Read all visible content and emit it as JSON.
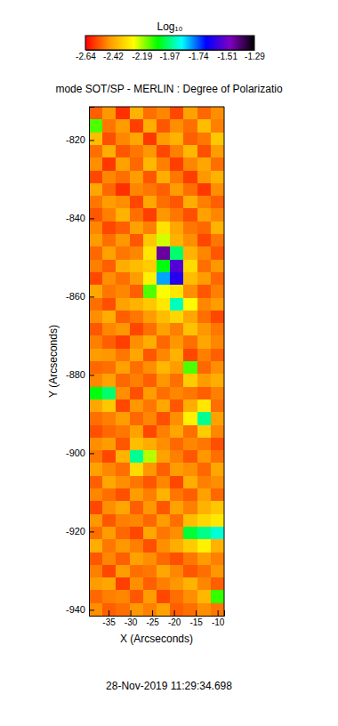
{
  "chart_data": {
    "type": "heatmap",
    "title": "mode SOT/SP - MERLIN : Degree of Polarizatio",
    "x_label": "X (Arcseconds)",
    "y_label": "Y (Arcseconds)",
    "annotation": "28-Nov-2019 11:29:34.698",
    "xlim": [
      -39.5,
      -8.5
    ],
    "xticks": [
      -35,
      -30,
      -25,
      -20,
      -15,
      -10
    ],
    "ylim": [
      -941.5,
      -811.5
    ],
    "yticks": [
      -940,
      -920,
      -900,
      -880,
      -860,
      -840,
      -820
    ],
    "colorbar": {
      "title": "Log₁₀",
      "range": [
        -2.64,
        -1.29
      ],
      "ticks": [
        -2.64,
        -2.42,
        -2.19,
        -1.97,
        -1.74,
        -1.51,
        -1.29
      ]
    },
    "x": [
      -37.95,
      -34.85,
      -31.75,
      -28.65,
      -25.55,
      -22.45,
      -19.35,
      -16.25,
      -13.15,
      -10.05
    ],
    "y": [
      -813.125,
      -816.375,
      -819.625,
      -822.875,
      -826.125,
      -829.375,
      -832.625,
      -835.875,
      -839.125,
      -842.375,
      -845.625,
      -848.875,
      -852.125,
      -855.375,
      -858.625,
      -861.875,
      -865.125,
      -868.375,
      -871.625,
      -874.875,
      -878.125,
      -881.375,
      -884.625,
      -887.875,
      -891.125,
      -894.375,
      -897.625,
      -900.875,
      -904.125,
      -907.375,
      -910.625,
      -913.875,
      -917.125,
      -920.375,
      -923.625,
      -926.875,
      -930.125,
      -933.375,
      -936.625,
      -939.875
    ],
    "z": [
      [
        -2.52,
        -2.45,
        -2.58,
        -2.4,
        -2.5,
        -2.47,
        -2.55,
        -2.43,
        -2.51,
        -2.46
      ],
      [
        -2.12,
        -2.49,
        -2.44,
        -2.56,
        -2.41,
        -2.53,
        -2.46,
        -2.5,
        -2.38,
        -2.48
      ],
      [
        -2.38,
        -2.54,
        -2.47,
        -2.42,
        -2.57,
        -2.44,
        -2.4,
        -2.52,
        -2.49,
        -2.36
      ],
      [
        -2.5,
        -2.41,
        -2.53,
        -2.49,
        -2.45,
        -2.55,
        -2.48,
        -2.39,
        -2.54,
        -2.44
      ],
      [
        -2.46,
        -2.57,
        -2.43,
        -2.51,
        -2.39,
        -2.48,
        -2.56,
        -2.47,
        -2.42,
        -2.5
      ],
      [
        -2.55,
        -2.47,
        -2.5,
        -2.44,
        -2.53,
        -2.41,
        -2.49,
        -2.56,
        -2.45,
        -2.4
      ],
      [
        -2.42,
        -2.51,
        -2.58,
        -2.47,
        -2.49,
        -2.52,
        -2.44,
        -2.5,
        -2.57,
        -2.46
      ],
      [
        -2.49,
        -2.44,
        -2.46,
        -2.55,
        -2.42,
        -2.5,
        -2.53,
        -2.41,
        -2.48,
        -2.52
      ],
      [
        -2.53,
        -2.48,
        -2.4,
        -2.5,
        -2.56,
        -2.45,
        -2.49,
        -2.54,
        -2.43,
        -2.47
      ],
      [
        -2.47,
        -2.55,
        -2.52,
        -2.43,
        -2.48,
        -2.31,
        -2.42,
        -2.49,
        -2.51,
        -2.4
      ],
      [
        -2.44,
        -2.5,
        -2.45,
        -2.53,
        -2.36,
        -2.22,
        -2.4,
        -2.46,
        -2.55,
        -2.49
      ],
      [
        -2.51,
        -2.43,
        -2.49,
        -2.47,
        -2.3,
        -1.45,
        -1.98,
        -2.4,
        -2.47,
        -2.53
      ],
      [
        -2.48,
        -2.52,
        -2.41,
        -2.38,
        -2.35,
        -2.05,
        -1.55,
        -2.32,
        -2.5,
        -2.45
      ],
      [
        -2.55,
        -2.46,
        -2.5,
        -2.44,
        -2.28,
        -1.8,
        -1.62,
        -2.38,
        -2.44,
        -2.51
      ],
      [
        -2.42,
        -2.49,
        -2.47,
        -2.52,
        -2.12,
        -2.25,
        -2.3,
        -2.46,
        -2.53,
        -2.48
      ],
      [
        -2.5,
        -2.54,
        -2.43,
        -2.4,
        -2.36,
        -2.3,
        -1.92,
        -2.26,
        -2.47,
        -2.44
      ],
      [
        -2.46,
        -2.41,
        -2.52,
        -2.49,
        -2.44,
        -2.38,
        -2.33,
        -2.42,
        -2.5,
        -2.55
      ],
      [
        -2.53,
        -2.47,
        -2.45,
        -2.55,
        -2.5,
        -2.43,
        -2.48,
        -2.37,
        -2.45,
        -2.49
      ],
      [
        -2.48,
        -2.52,
        -2.56,
        -2.46,
        -2.41,
        -2.51,
        -2.45,
        -2.5,
        -2.42,
        -2.47
      ],
      [
        -2.44,
        -2.45,
        -2.49,
        -2.42,
        -2.53,
        -2.47,
        -2.4,
        -2.55,
        -2.48,
        -2.52
      ],
      [
        -2.51,
        -2.5,
        -2.43,
        -2.5,
        -2.46,
        -2.39,
        -2.44,
        -2.12,
        -2.51,
        -2.46
      ],
      [
        -2.47,
        -2.43,
        -2.51,
        -2.48,
        -2.52,
        -2.45,
        -2.5,
        -2.35,
        -2.44,
        -2.41
      ],
      [
        -2.05,
        -1.98,
        -2.46,
        -2.54,
        -2.44,
        -2.5,
        -2.47,
        -2.49,
        -2.52,
        -2.48
      ],
      [
        -2.42,
        -2.36,
        -2.55,
        -2.45,
        -2.49,
        -2.42,
        -2.53,
        -2.41,
        -2.3,
        -2.5
      ],
      [
        -2.5,
        -2.48,
        -2.44,
        -2.51,
        -2.47,
        -2.54,
        -2.46,
        -2.28,
        -1.95,
        -2.43
      ],
      [
        -2.54,
        -2.51,
        -2.49,
        -2.43,
        -2.55,
        -2.48,
        -2.42,
        -2.5,
        -2.35,
        -2.47
      ],
      [
        -2.46,
        -2.44,
        -2.53,
        -2.38,
        -2.41,
        -2.46,
        -2.51,
        -2.47,
        -2.49,
        -2.54
      ],
      [
        -2.49,
        -2.55,
        -2.4,
        -1.95,
        -2.2,
        -2.43,
        -2.48,
        -2.53,
        -2.45,
        -2.5
      ],
      [
        -2.43,
        -2.47,
        -2.5,
        -2.32,
        -2.45,
        -2.52,
        -2.44,
        -2.46,
        -2.51,
        -2.42
      ],
      [
        -2.52,
        -2.42,
        -2.46,
        -2.49,
        -2.53,
        -2.47,
        -2.55,
        -2.41,
        -2.48,
        -2.46
      ],
      [
        -2.47,
        -2.5,
        -2.54,
        -2.44,
        -2.48,
        -2.4,
        -2.49,
        -2.52,
        -2.43,
        -2.51
      ],
      [
        -2.55,
        -2.46,
        -2.42,
        -2.52,
        -2.45,
        -2.53,
        -2.43,
        -2.48,
        -2.4,
        -2.36
      ],
      [
        -2.45,
        -2.53,
        -2.48,
        -2.47,
        -2.51,
        -2.44,
        -2.5,
        -2.38,
        -2.33,
        -2.3
      ],
      [
        -2.5,
        -2.44,
        -2.51,
        -2.55,
        -2.42,
        -2.49,
        -2.46,
        -2.02,
        -1.96,
        -1.9
      ],
      [
        -2.41,
        -2.49,
        -2.45,
        -2.48,
        -2.54,
        -2.46,
        -2.41,
        -2.35,
        -2.28,
        -2.4
      ],
      [
        -2.53,
        -2.47,
        -2.52,
        -2.43,
        -2.46,
        -2.51,
        -2.54,
        -2.49,
        -2.44,
        -2.48
      ],
      [
        -2.48,
        -2.55,
        -2.44,
        -2.5,
        -2.49,
        -2.42,
        -2.47,
        -2.53,
        -2.5,
        -2.45
      ],
      [
        -2.44,
        -2.42,
        -2.56,
        -2.46,
        -2.52,
        -2.48,
        -2.45,
        -2.4,
        -2.47,
        -2.52
      ],
      [
        -2.51,
        -2.48,
        -2.47,
        -2.53,
        -2.44,
        -2.55,
        -2.5,
        -2.46,
        -2.39,
        -2.1
      ],
      [
        -2.46,
        -2.52,
        -2.5,
        -2.45,
        -2.48,
        -2.43,
        -2.52,
        -2.5,
        -2.46,
        -2.49
      ]
    ]
  }
}
